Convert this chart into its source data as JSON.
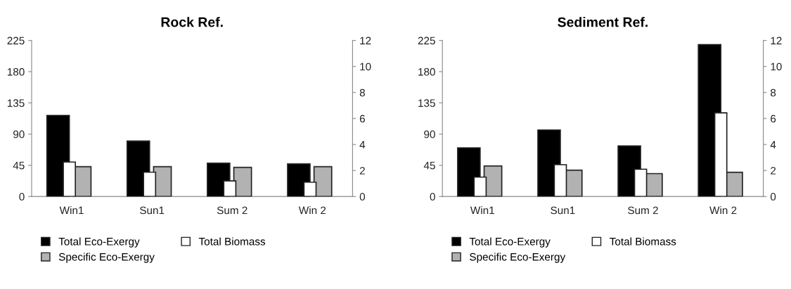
{
  "chart_data": [
    {
      "type": "bar",
      "title": "Rock Ref.",
      "categories": [
        "Win1",
        "Sun1",
        "Sum 2",
        "Win 2"
      ],
      "ylim": [
        0,
        225
      ],
      "yticks": [
        0,
        45,
        90,
        135,
        180,
        225
      ],
      "y2lim": [
        0,
        12
      ],
      "y2ticks": [
        0,
        2,
        4,
        6,
        8,
        10,
        12
      ],
      "grid": false,
      "legend": "bottom",
      "series": [
        {
          "name": "Total Eco-Exergy",
          "color": "#000000",
          "values": [
            117,
            80,
            48,
            47
          ]
        },
        {
          "name": "Specific Eco-Exergy",
          "color": "#b2b2b2",
          "values": [
            43,
            43,
            42,
            43
          ]
        },
        {
          "name": "Total Biomass",
          "color": "#ffffff",
          "axis": "y2",
          "values": [
            2.65,
            1.87,
            1.2,
            1.1
          ]
        }
      ]
    },
    {
      "type": "bar",
      "title": "Sediment Ref.",
      "categories": [
        "Win1",
        "Sun1",
        "Sum 2",
        "Win 2"
      ],
      "ylim": [
        0,
        225
      ],
      "yticks": [
        0,
        45,
        90,
        135,
        180,
        225
      ],
      "y2lim": [
        0,
        12
      ],
      "y2ticks": [
        0,
        2,
        4,
        6,
        8,
        10,
        12
      ],
      "grid": false,
      "legend": "bottom",
      "series": [
        {
          "name": "Total Eco-Exergy",
          "color": "#000000",
          "values": [
            70,
            96,
            73,
            219
          ]
        },
        {
          "name": "Specific Eco-Exergy",
          "color": "#b2b2b2",
          "values": [
            44,
            38,
            33,
            35
          ]
        },
        {
          "name": "Total Biomass",
          "color": "#ffffff",
          "axis": "y2",
          "values": [
            1.49,
            2.45,
            2.1,
            6.43
          ]
        }
      ]
    }
  ]
}
